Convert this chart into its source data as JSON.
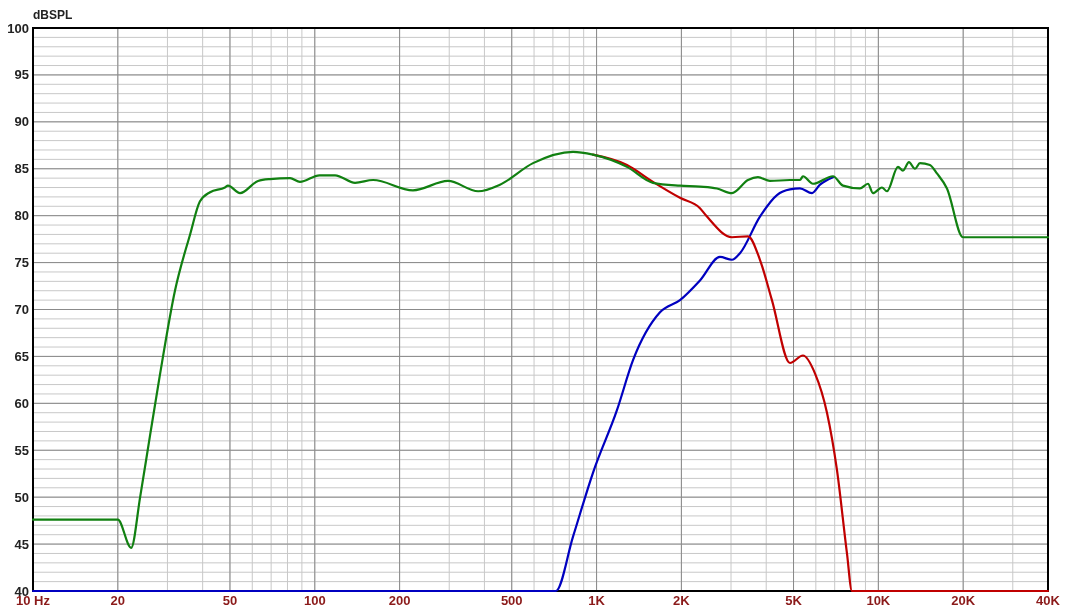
{
  "chart_data": {
    "type": "line",
    "ylabel": "dBSPL",
    "log": "x",
    "grid": true,
    "xlim": [
      10,
      40000
    ],
    "ylim": [
      40,
      100
    ],
    "xticks": [
      {
        "value": 10,
        "label": "10 Hz"
      },
      20,
      50,
      100,
      200,
      500,
      {
        "value": 1000,
        "label": "1K"
      },
      {
        "value": 2000,
        "label": "2K"
      },
      {
        "value": 5000,
        "label": "5K"
      },
      {
        "value": 10000,
        "label": "10K"
      },
      {
        "value": 20000,
        "label": "20K"
      },
      {
        "value": 40000,
        "label": "40K"
      }
    ],
    "yticks": [
      40,
      45,
      50,
      55,
      60,
      65,
      70,
      75,
      80,
      85,
      90,
      95,
      100
    ],
    "series": [
      {
        "color": "#0000c0",
        "x": [
          10,
          717,
          825,
          971,
          1182,
          1347,
          1679,
          1977,
          2328,
          2741,
          3023,
          3228,
          3800,
          4368,
          4857,
          5271,
          5814,
          6207,
          6903
        ],
        "values": [
          40,
          40,
          45.8,
          52.6,
          59.3,
          64.6,
          69.7,
          71.0,
          73.1,
          75.6,
          75.3,
          76.0,
          79.9,
          82.2,
          82.8,
          82.9,
          82.4,
          83.3,
          84.1
        ]
      },
      {
        "color": "#c00000",
        "x": [
          971,
          1282,
          1585,
          1977,
          2328,
          2465,
          3023,
          3446,
          3800,
          4191,
          4857,
          5401,
          5957,
          6572,
          7130,
          7738,
          8059,
          40000
        ],
        "values": [
          86.5,
          85.4,
          83.6,
          81.9,
          80.8,
          79.9,
          77.7,
          77.8,
          75.3,
          71.0,
          64.3,
          65.1,
          63.2,
          59.0,
          52.9,
          44.0,
          40,
          40
        ]
      },
      {
        "color": "#118011",
        "x": [
          10,
          20,
          22.3,
          24,
          26,
          28.2,
          31.9,
          36.1,
          39.1,
          42.5,
          48,
          49.2,
          54.3,
          62.9,
          69.3,
          81.7,
          88.6,
          104,
          118,
          139,
          161,
          223,
          297,
          380,
          454,
          595,
          825,
          971,
          1282,
          1585,
          1977,
          2328,
          2675,
          3023,
          3446,
          3739,
          4124,
          4857,
          5271,
          5401,
          5862,
          6903,
          7489,
          8604,
          9186,
          9568,
          10300,
          10730,
          11740,
          12230,
          12840,
          13490,
          14050,
          15240,
          16140,
          17520,
          19960,
          40000
        ],
        "values": [
          47.6,
          47.6,
          44.6,
          50,
          56.5,
          63,
          72,
          78,
          81.5,
          82.5,
          83.0,
          83.2,
          82.4,
          83.7,
          83.9,
          84.0,
          83.6,
          84.3,
          84.3,
          83.5,
          83.8,
          82.7,
          83.7,
          82.6,
          83.3,
          85.6,
          86.8,
          86.5,
          85.2,
          83.5,
          83.2,
          83.1,
          82.9,
          82.4,
          83.8,
          84.1,
          83.7,
          83.8,
          83.8,
          84.2,
          83.4,
          84.2,
          83.2,
          82.9,
          83.4,
          82.4,
          83.0,
          82.6,
          85.2,
          84.8,
          85.7,
          85.0,
          85.6,
          85.4,
          84.5,
          82.9,
          77.7,
          77.7
        ]
      }
    ]
  }
}
